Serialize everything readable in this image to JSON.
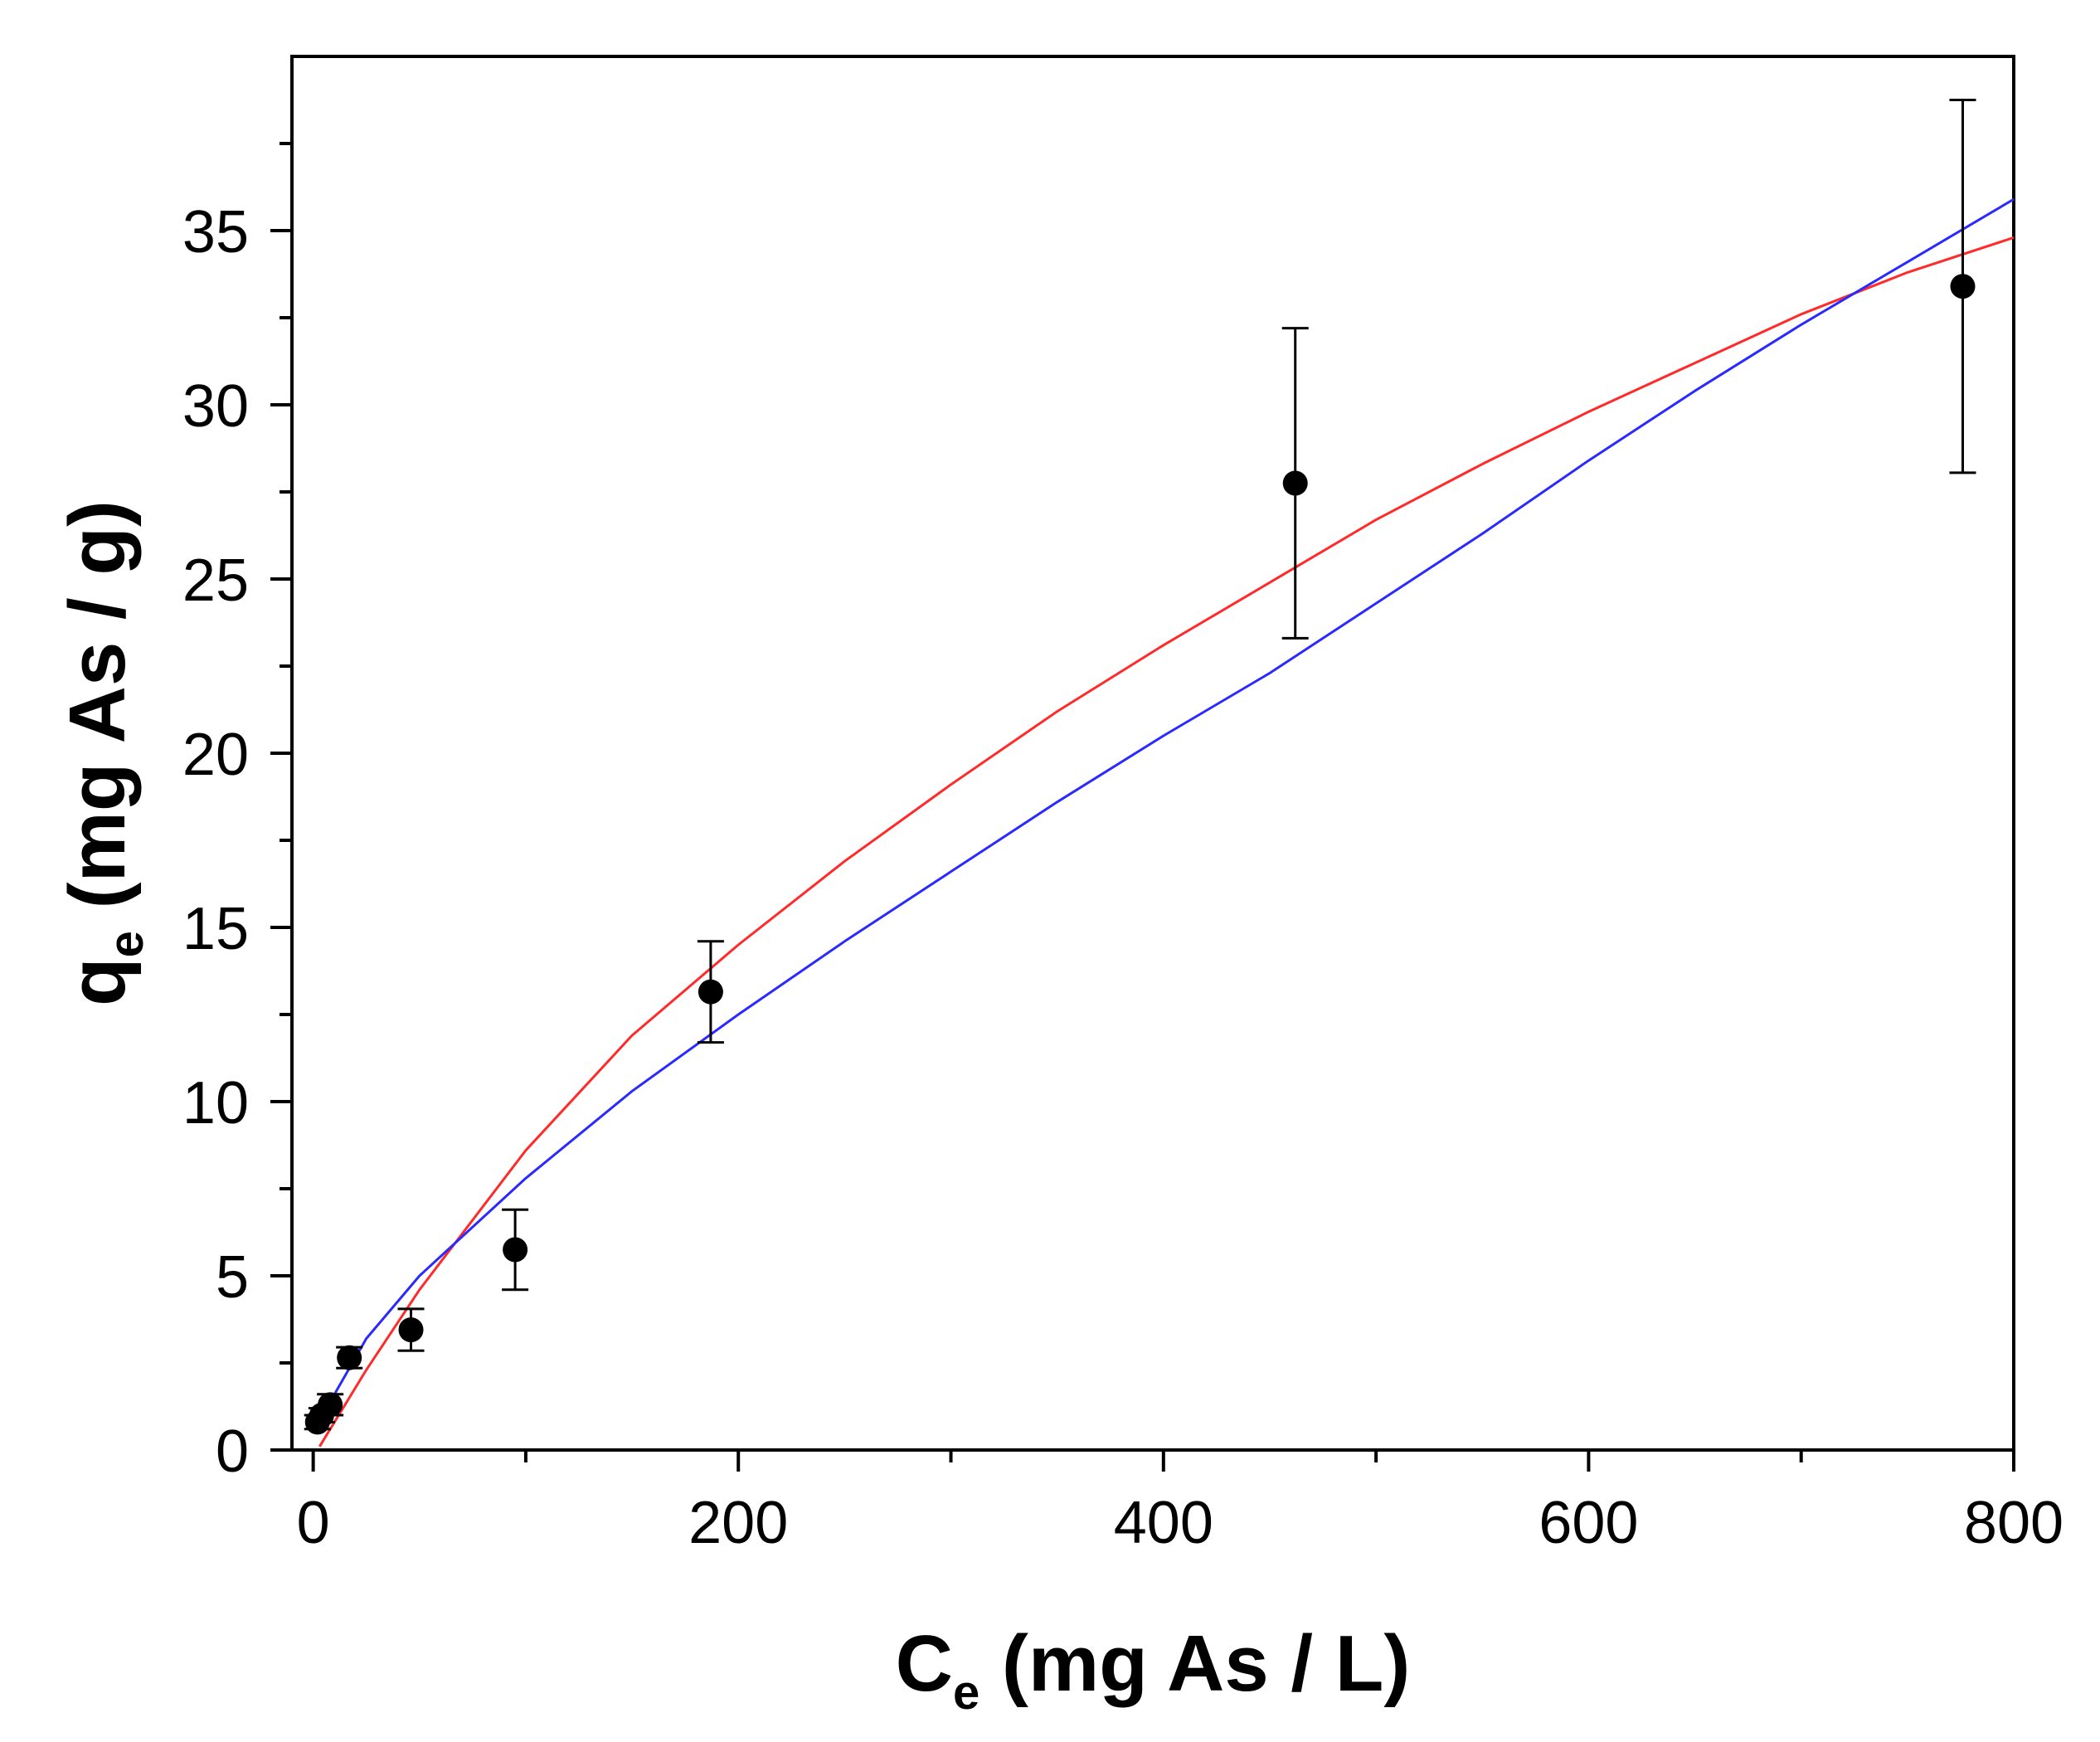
{
  "chart_data": {
    "type": "scatter",
    "title": "",
    "xlabel": {
      "main": "C",
      "sub": "e",
      "rest": " (mg As / L)"
    },
    "ylabel": {
      "main": "q",
      "sub": "e",
      "rest": " (mg As / g)"
    },
    "xlim": [
      -10,
      800
    ],
    "ylim": [
      0,
      40
    ],
    "x_ticks": [
      0,
      200,
      400,
      600,
      800
    ],
    "x_tick_labels": [
      "0",
      "200",
      "400",
      "600",
      "800"
    ],
    "x_minor_ticks": [
      100,
      300,
      500,
      700
    ],
    "y_ticks": [
      0,
      5,
      10,
      15,
      20,
      25,
      30,
      35
    ],
    "y_tick_labels": [
      "0",
      "5",
      "10",
      "15",
      "20",
      "25",
      "30",
      "35"
    ],
    "y_minor_ticks": [
      2.5,
      7.5,
      12.5,
      17.5,
      22.5,
      27.5,
      32.5,
      37.5
    ],
    "grid": false,
    "series": [
      {
        "name": "data",
        "kind": "scatter-errorbar",
        "color": "#000000",
        "points": [
          {
            "x": 2,
            "y": 0.8,
            "err": 0.2
          },
          {
            "x": 4,
            "y": 1.0,
            "err": 0.2
          },
          {
            "x": 8,
            "y": 1.3,
            "err": 0.3
          },
          {
            "x": 17,
            "y": 2.65,
            "err": 0.3
          },
          {
            "x": 46,
            "y": 3.45,
            "err": 0.6
          },
          {
            "x": 95,
            "y": 5.75,
            "err": 1.15
          },
          {
            "x": 187,
            "y": 13.15,
            "err": 1.45
          },
          {
            "x": 462,
            "y": 27.75,
            "err": 4.45
          },
          {
            "x": 776,
            "y": 33.4,
            "err": 5.35
          }
        ]
      },
      {
        "name": "fit-red",
        "kind": "line",
        "color": "#ff2a2a",
        "x": [
          3,
          25,
          50,
          100,
          150,
          200,
          250,
          300,
          350,
          400,
          450,
          500,
          550,
          600,
          650,
          700,
          750,
          800
        ],
        "y": [
          0.1,
          2.3,
          4.6,
          8.6,
          11.9,
          14.5,
          16.9,
          19.1,
          21.2,
          23.1,
          24.9,
          26.7,
          28.3,
          29.8,
          31.2,
          32.6,
          33.8,
          34.8
        ]
      },
      {
        "name": "fit-blue",
        "kind": "line",
        "color": "#2a2aff",
        "x": [
          3,
          10,
          25,
          50,
          100,
          150,
          200,
          250,
          300,
          350,
          400,
          450,
          500,
          550,
          600,
          650,
          700,
          750,
          800
        ],
        "y": [
          0.6,
          1.6,
          3.2,
          5.0,
          7.8,
          10.3,
          12.5,
          14.6,
          16.6,
          18.6,
          20.5,
          22.3,
          24.3,
          26.3,
          28.4,
          30.4,
          32.3,
          34.1,
          35.9
        ]
      }
    ]
  }
}
